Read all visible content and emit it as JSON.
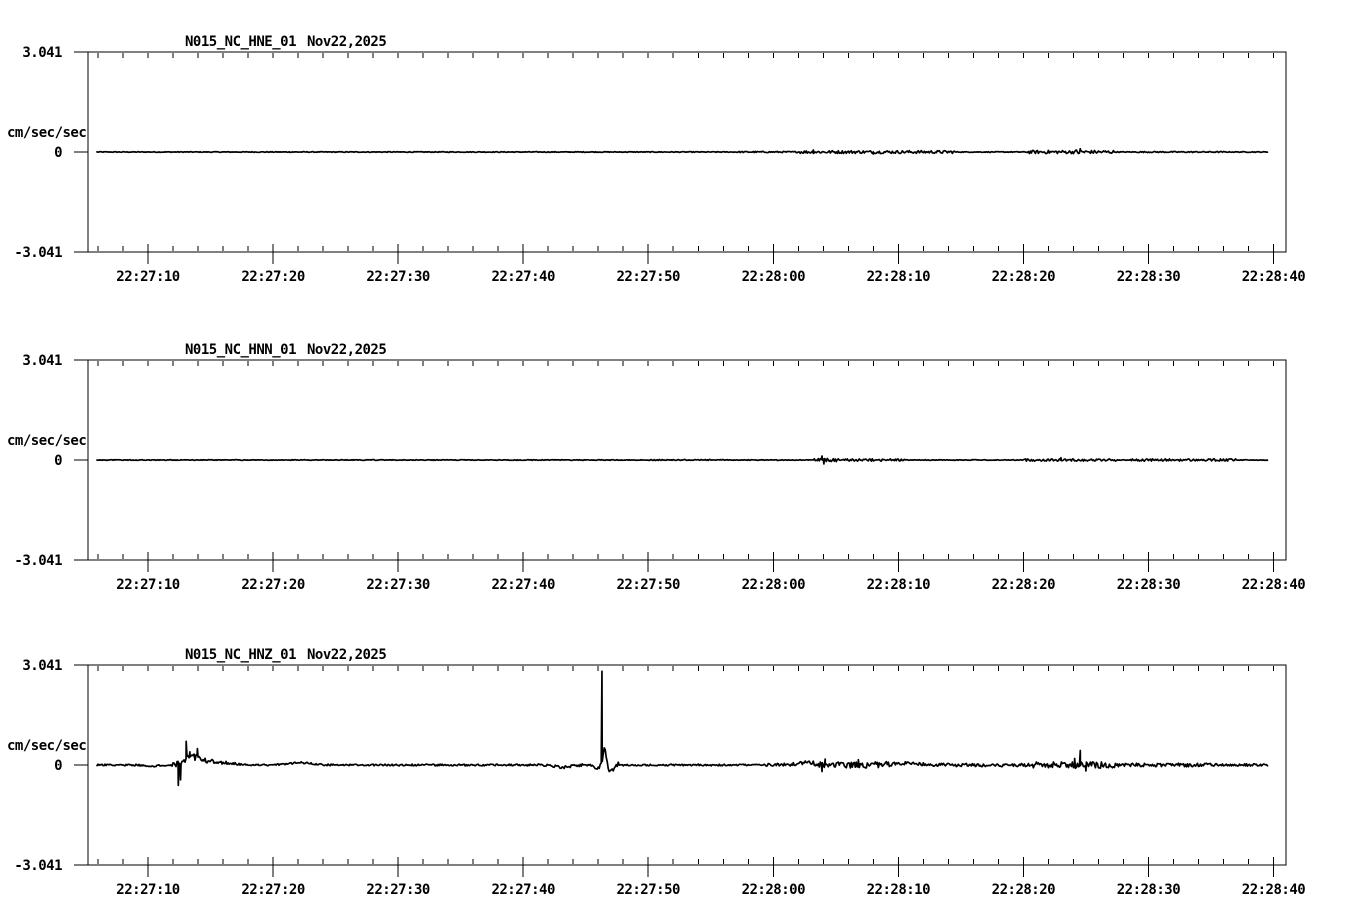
{
  "window": {
    "background": "#ffffff",
    "foreground": "#000000"
  },
  "chart_data": [
    {
      "type": "line",
      "title": "N015_NC_HNE_01",
      "date_label": "Nov22,2025",
      "ylabel": "cm/sec/sec",
      "ylim": [
        -3.041,
        3.041
      ],
      "yticks": [
        {
          "v": 3.041,
          "label": "3.041"
        },
        {
          "v": 0,
          "label": "0"
        },
        {
          "v": -3.041,
          "label": "-3.041"
        }
      ],
      "x_axis": {
        "start_seconds": 5.2,
        "end_seconds": 101.0,
        "minor_step_seconds": 2,
        "ticks": [
          {
            "t": 10,
            "label": "22:27:10"
          },
          {
            "t": 20,
            "label": "22:27:20"
          },
          {
            "t": 30,
            "label": "22:27:30"
          },
          {
            "t": 40,
            "label": "22:27:40"
          },
          {
            "t": 50,
            "label": "22:27:50"
          },
          {
            "t": 60,
            "label": "22:28:00"
          },
          {
            "t": 70,
            "label": "22:28:10"
          },
          {
            "t": 80,
            "label": "22:28:20"
          },
          {
            "t": 90,
            "label": "22:28:30"
          },
          {
            "t": 100,
            "label": "22:28:40"
          }
        ]
      },
      "trace": {
        "start": 5.92,
        "end": 99.52,
        "base": 0.012,
        "segments": [
          [
            57,
            62,
            0.02
          ],
          [
            62,
            74.5,
            0.045
          ],
          [
            80.3,
            87.2,
            0.05
          ],
          [
            84.2,
            85.0,
            0.09
          ],
          [
            89,
            96,
            0.018
          ]
        ],
        "bumps": [],
        "spikes": [
          [
            63.2,
            0.06
          ],
          [
            68,
            -0.06
          ],
          [
            84.55,
            0.1
          ]
        ]
      }
    },
    {
      "type": "line",
      "title": "N015_NC_HNN_01",
      "date_label": "Nov22,2025",
      "ylabel": "cm/sec/sec",
      "ylim": [
        -3.041,
        3.041
      ],
      "yticks": [
        {
          "v": 3.041,
          "label": "3.041"
        },
        {
          "v": 0,
          "label": "0"
        },
        {
          "v": -3.041,
          "label": "-3.041"
        }
      ],
      "x_axis": {
        "start_seconds": 5.2,
        "end_seconds": 101.0,
        "minor_step_seconds": 2,
        "ticks": [
          {
            "t": 10,
            "label": "22:27:10"
          },
          {
            "t": 20,
            "label": "22:27:20"
          },
          {
            "t": 30,
            "label": "22:27:30"
          },
          {
            "t": 40,
            "label": "22:27:40"
          },
          {
            "t": 50,
            "label": "22:27:50"
          },
          {
            "t": 60,
            "label": "22:28:00"
          },
          {
            "t": 70,
            "label": "22:28:10"
          },
          {
            "t": 80,
            "label": "22:28:20"
          },
          {
            "t": 90,
            "label": "22:28:30"
          },
          {
            "t": 100,
            "label": "22:28:40"
          }
        ]
      },
      "trace": {
        "start": 5.92,
        "end": 99.52,
        "base": 0.011,
        "segments": [
          [
            50,
            56,
            0.016
          ],
          [
            63.2,
            65.2,
            0.05
          ],
          [
            65.2,
            70.5,
            0.035
          ],
          [
            80,
            87.5,
            0.035
          ],
          [
            88.5,
            97,
            0.035
          ]
        ],
        "bumps": [],
        "spikes": [
          [
            63.9,
            0.12
          ],
          [
            64.05,
            -0.12
          ],
          [
            83,
            0.07
          ]
        ]
      }
    },
    {
      "type": "line",
      "title": "N015_NC_HNZ_01",
      "date_label": "Nov22,2025",
      "ylabel": "cm/sec/sec",
      "ylim": [
        -3.041,
        3.041
      ],
      "yticks": [
        {
          "v": 3.041,
          "label": "3.041"
        },
        {
          "v": 0,
          "label": "0"
        },
        {
          "v": -3.041,
          "label": "-3.041"
        }
      ],
      "x_axis": {
        "start_seconds": 5.2,
        "end_seconds": 101.0,
        "minor_step_seconds": 2,
        "ticks": [
          {
            "t": 10,
            "label": "22:27:10"
          },
          {
            "t": 20,
            "label": "22:27:20"
          },
          {
            "t": 30,
            "label": "22:27:30"
          },
          {
            "t": 40,
            "label": "22:27:40"
          },
          {
            "t": 50,
            "label": "22:27:50"
          },
          {
            "t": 60,
            "label": "22:28:00"
          },
          {
            "t": 70,
            "label": "22:28:10"
          },
          {
            "t": 80,
            "label": "22:28:20"
          },
          {
            "t": 90,
            "label": "22:28:30"
          },
          {
            "t": 100,
            "label": "22:28:40"
          }
        ]
      },
      "trace": {
        "start": 5.92,
        "end": 99.52,
        "base": 0.028,
        "segments": [
          [
            11.8,
            15.2,
            0.1
          ],
          [
            15.2,
            17,
            0.05
          ],
          [
            41,
            45,
            0.04
          ],
          [
            46,
            47.6,
            0.09
          ],
          [
            59,
            62.5,
            0.05
          ],
          [
            62.5,
            69.5,
            0.09
          ],
          [
            69.5,
            80.5,
            0.05
          ],
          [
            80.7,
            87.3,
            0.1
          ],
          [
            87.3,
            95,
            0.055
          ],
          [
            95,
            99.5,
            0.04
          ]
        ],
        "bumps": [
          [
            10.2,
            0.5,
            -0.05
          ],
          [
            13.4,
            0.9,
            0.22
          ],
          [
            15.3,
            1.6,
            0.09
          ],
          [
            22.2,
            1.2,
            0.07
          ],
          [
            43.2,
            0.9,
            -0.07
          ],
          [
            45.9,
            0.35,
            -0.1
          ],
          [
            46.52,
            0.22,
            0.5
          ],
          [
            46.95,
            0.3,
            -0.22
          ],
          [
            62.4,
            0.9,
            0.06
          ],
          [
            70.5,
            1.5,
            0.05
          ]
        ],
        "spikes": [
          [
            12.42,
            -0.62
          ],
          [
            12.6,
            -0.45
          ],
          [
            13.05,
            0.72
          ],
          [
            13.35,
            0.4
          ],
          [
            13.95,
            0.5
          ],
          [
            46.3,
            2.85
          ],
          [
            63.9,
            -0.2
          ],
          [
            64.15,
            0.18
          ],
          [
            66.8,
            0.16
          ],
          [
            84.1,
            0.2
          ],
          [
            84.55,
            0.44
          ],
          [
            85.0,
            -0.18
          ]
        ]
      }
    }
  ]
}
